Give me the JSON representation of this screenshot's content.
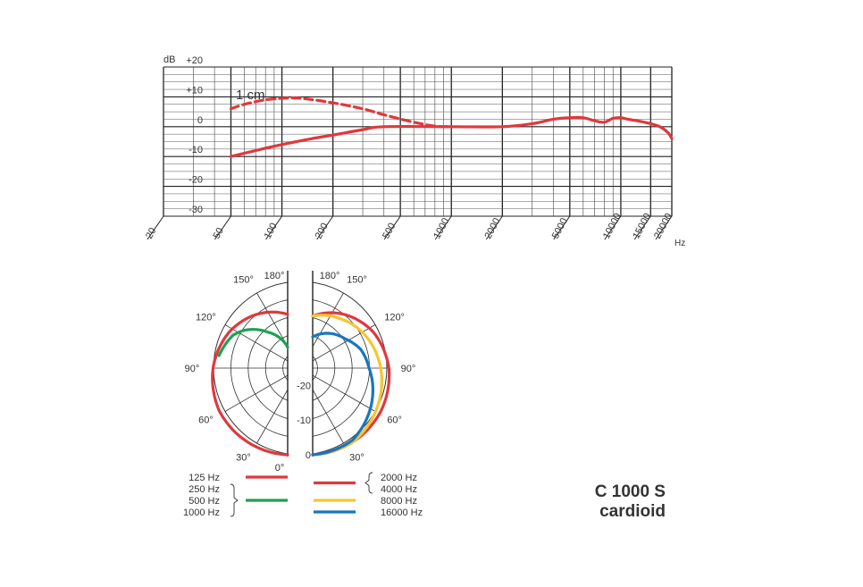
{
  "product": {
    "model": "C 1000 S",
    "pattern": "cardioid"
  },
  "chart_data": [
    {
      "type": "line",
      "xscale": "log",
      "xlabel": "Hz",
      "ylabel": "dB",
      "x_ticks": [
        20,
        50,
        100,
        200,
        500,
        1000,
        2000,
        5000,
        10000,
        15000,
        20000
      ],
      "x_tick_labels": [
        "20",
        "50",
        "100",
        "200",
        "500",
        "1000",
        "2000",
        "5000",
        "10000",
        "15000",
        "20000"
      ],
      "y_ticks": [
        20,
        10,
        0,
        -10,
        -20,
        -30
      ],
      "y_tick_labels": [
        "+20",
        "+10",
        "0",
        "-10",
        "-20",
        "-30"
      ],
      "xlim": [
        20,
        20000
      ],
      "ylim": [
        -30,
        20
      ],
      "grid": true,
      "annotation": "1 cm",
      "series": [
        {
          "name": "",
          "color": "#e0383c",
          "style": "solid",
          "points": [
            [
              50,
              -10
            ],
            [
              70,
              -8
            ],
            [
              100,
              -6
            ],
            [
              150,
              -4
            ],
            [
              200,
              -2.8
            ],
            [
              300,
              -1
            ],
            [
              400,
              0
            ],
            [
              1000,
              0
            ],
            [
              2000,
              0
            ],
            [
              3000,
              1
            ],
            [
              4000,
              2.5
            ],
            [
              5000,
              3
            ],
            [
              6000,
              3
            ],
            [
              7000,
              2
            ],
            [
              8000,
              1.5
            ],
            [
              9000,
              2.8
            ],
            [
              10000,
              3
            ],
            [
              11000,
              2.5
            ],
            [
              13000,
              1.8
            ],
            [
              15000,
              1
            ],
            [
              17000,
              0
            ],
            [
              19000,
              -2
            ],
            [
              20000,
              -4
            ]
          ]
        },
        {
          "name": "1 cm",
          "color": "#e0383c",
          "style": "dashed",
          "points": [
            [
              50,
              6
            ],
            [
              60,
              7.5
            ],
            [
              80,
              9
            ],
            [
              100,
              9.5
            ],
            [
              130,
              9.5
            ],
            [
              200,
              8
            ],
            [
              300,
              6
            ],
            [
              400,
              4
            ],
            [
              600,
              1.5
            ],
            [
              800,
              0.2
            ],
            [
              1000,
              0
            ]
          ]
        }
      ]
    },
    {
      "type": "polar",
      "angle_unit": "degrees",
      "angle_labels": [
        "0°",
        "30°",
        "60°",
        "90°",
        "120°",
        "150°",
        "180°"
      ],
      "radial_labels": [
        "0",
        "-10",
        "-20"
      ],
      "rlim": [
        -25,
        0
      ],
      "series": [
        {
          "name": "125 Hz",
          "color": "#e0383c",
          "side": "left",
          "points": [
            [
              0,
              0
            ],
            [
              30,
              -0.5
            ],
            [
              60,
              -1
            ],
            [
              90,
              -2.5
            ],
            [
              120,
              -4.5
            ],
            [
              150,
              -7
            ],
            [
              180,
              -9.5
            ]
          ]
        },
        {
          "name": "250 Hz / 500 Hz / 1000 Hz",
          "color": "#1ea152",
          "side": "left",
          "points": [
            [
              100,
              -4
            ],
            [
              120,
              -6
            ],
            [
              130,
              -8
            ],
            [
              150,
              -13
            ],
            [
              165,
              -16
            ],
            [
              180,
              -19
            ]
          ]
        },
        {
          "name": "2000 Hz / 4000 Hz",
          "color": "#e0383c",
          "side": "right",
          "points": [
            [
              0,
              0
            ],
            [
              30,
              -0.5
            ],
            [
              60,
              -1
            ],
            [
              90,
              -2
            ],
            [
              120,
              -4
            ],
            [
              150,
              -7
            ],
            [
              180,
              -10
            ]
          ]
        },
        {
          "name": "8000 Hz",
          "color": "#f7c531",
          "side": "right",
          "points": [
            [
              0,
              0
            ],
            [
              30,
              -0.5
            ],
            [
              60,
              -2.5
            ],
            [
              90,
              -4.5
            ],
            [
              105,
              -5.5
            ],
            [
              120,
              -6.5
            ],
            [
              150,
              -8.5
            ],
            [
              180,
              -10
            ]
          ]
        },
        {
          "name": "16000 Hz",
          "color": "#1777bd",
          "side": "right",
          "points": [
            [
              0,
              0
            ],
            [
              30,
              -1
            ],
            [
              60,
              -4.5
            ],
            [
              90,
              -8
            ],
            [
              110,
              -9.5
            ],
            [
              130,
              -12
            ],
            [
              150,
              -13.5
            ],
            [
              180,
              -16
            ]
          ]
        }
      ]
    }
  ],
  "legend": {
    "left": [
      {
        "labels": [
          "125 Hz"
        ],
        "color": "#e0383c"
      },
      {
        "labels": [
          "250 Hz",
          "500 Hz",
          "1000 Hz"
        ],
        "color": "#1ea152"
      }
    ],
    "right": [
      {
        "labels": [
          "2000 Hz",
          "4000 Hz"
        ],
        "color": "#e0383c"
      },
      {
        "labels": [
          "8000 Hz"
        ],
        "color": "#f7c531"
      },
      {
        "labels": [
          "16000 Hz"
        ],
        "color": "#1777bd"
      }
    ]
  }
}
